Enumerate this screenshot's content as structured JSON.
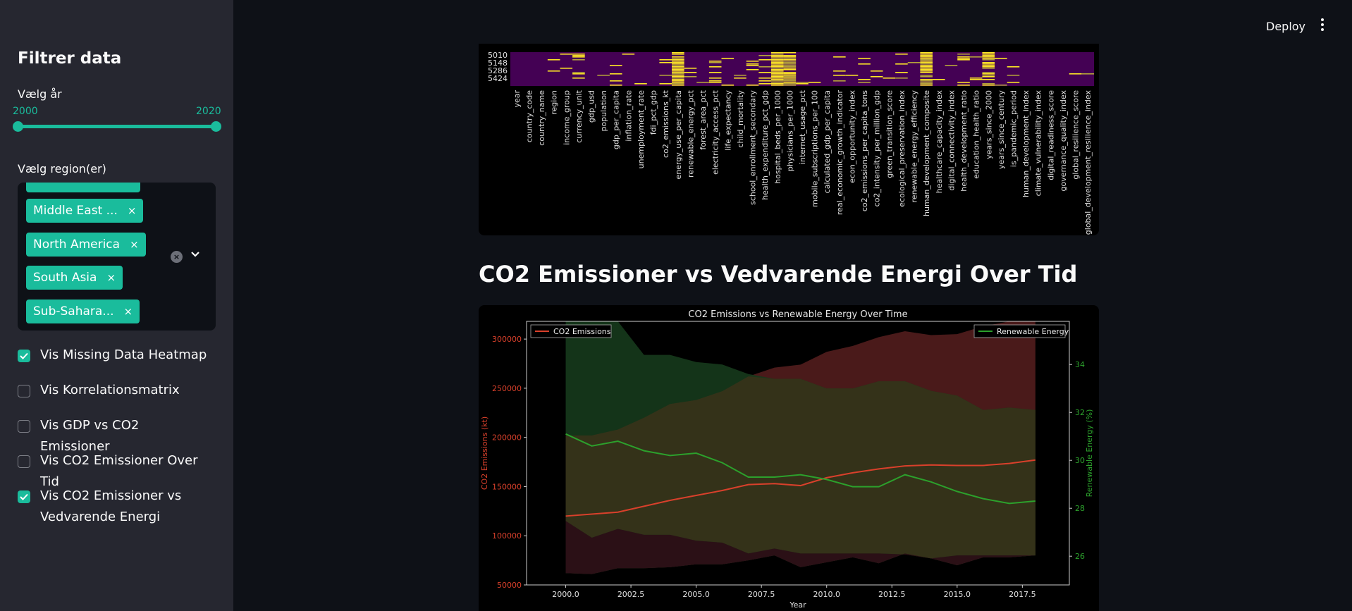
{
  "sidebar": {
    "title": "Filtrer data",
    "year_label": "Vælg år",
    "year_min": "2000",
    "year_max": "2020",
    "year_range": [
      2000,
      2020
    ],
    "region_label": "Vælg region(er)",
    "regions": [
      {
        "label": "Middle East ...",
        "remove": "×"
      },
      {
        "label": "North America",
        "remove": "×"
      },
      {
        "label": "South Asia",
        "remove": "×"
      },
      {
        "label": "Sub-Sahara...",
        "remove": "×"
      }
    ],
    "clear_glyph": "×",
    "checkboxes": [
      {
        "label": "Vis Missing Data Heatmap",
        "checked": true
      },
      {
        "label": "Vis Korrelationsmatrix",
        "checked": false
      },
      {
        "label": "Vis GDP vs CO2 Emissioner",
        "checked": false
      },
      {
        "label": "Vis CO2 Emissioner Over Tid",
        "checked": false
      },
      {
        "label": "Vis CO2 Emissioner vs Vedvarende Energi",
        "checked": true
      }
    ]
  },
  "header": {
    "deploy_label": "Deploy",
    "menu_icon": "vertical-dots-icon"
  },
  "heatmap": {
    "row_labels": [
      "5010",
      "5148",
      "5286",
      "5424"
    ],
    "columns": [
      "year",
      "country_code",
      "country_name",
      "region",
      "income_group",
      "currency_unit",
      "gdp_usd",
      "population",
      "gdp_per_capita",
      "inflation_rate",
      "unemployment_rate",
      "fdi_pct_gdp",
      "co2_emissions_kt",
      "energy_use_per_capita",
      "renewable_energy_pct",
      "forest_area_pct",
      "electricity_access_pct",
      "life_expectancy",
      "child_mortality",
      "school_enrollment_secondary",
      "health_expenditure_pct_gdp",
      "hospital_beds_per_1000",
      "physicians_per_1000",
      "internet_usage_pct",
      "mobile_subscriptions_per_100",
      "calculated_gdp_per_capita",
      "real_economic_growth_indicator",
      "econ_opportunity_index",
      "co2_emissions_per_capita_tons",
      "co2_intensity_per_million_gdp",
      "green_transition_score",
      "ecological_preservation_index",
      "renewable_energy_efficiency",
      "human_development_composite",
      "healthcare_capacity_index",
      "digital_connectivity_index",
      "health_development_ratio",
      "education_health_ratio",
      "years_since_2000",
      "years_since_century",
      "is_pandemic_period",
      "human_development_index",
      "climate_vulnerability_index",
      "digital_readiness_score",
      "governance_quality_index",
      "global_resilience_score",
      "global_development_resilience_index"
    ],
    "colors": {
      "background": "#440154",
      "missing": "#fde725",
      "mid": "#b5a33a"
    }
  },
  "section": {
    "title": "CO2 Emissioner vs Vedvarende Energi Over Tid"
  },
  "chart_data": {
    "type": "line",
    "title": "CO2 Emissions vs Renewable Energy Over Time",
    "xlabel": "Year",
    "ylabel": "CO2 Emissions (kt)",
    "ylabel_right": "Renewable Energy (%)",
    "x": [
      2000,
      2001,
      2002,
      2003,
      2004,
      2005,
      2006,
      2007,
      2008,
      2009,
      2010,
      2011,
      2012,
      2013,
      2014,
      2015,
      2016,
      2017,
      2018
    ],
    "xlim": [
      1998.5,
      2019.3
    ],
    "ylim": [
      50000,
      318000
    ],
    "ylim_right": [
      24.8,
      35.8
    ],
    "x_ticks": [
      "2000.0",
      "2002.5",
      "2005.0",
      "2007.5",
      "2010.0",
      "2012.5",
      "2015.0",
      "2017.5"
    ],
    "y_ticks": [
      "50000",
      "100000",
      "150000",
      "200000",
      "250000",
      "300000"
    ],
    "y_right_ticks": [
      "26",
      "28",
      "30",
      "32",
      "34"
    ],
    "series": [
      {
        "name": "CO2 Emissions",
        "axis": "left",
        "color": "#d9402b",
        "values": [
          120000,
          122000,
          124000,
          130000,
          136000,
          141000,
          146000,
          152000,
          153000,
          151000,
          159000,
          164000,
          168000,
          171000,
          172000,
          171500,
          171500,
          173500,
          177000
        ],
        "band_low": [
          62000,
          61000,
          67000,
          67000,
          68000,
          71000,
          71000,
          75000,
          80000,
          68000,
          73000,
          78000,
          72000,
          82000,
          77000,
          70000,
          78000,
          78000,
          80000
        ],
        "band_high": [
          115000,
          98000,
          107000,
          101000,
          101000,
          95000,
          93000,
          82000,
          87000,
          82000,
          82000,
          82000,
          82000,
          81000,
          77000,
          80000,
          80000,
          80000,
          80000
        ],
        "band_top": [
          202000,
          202000,
          208000,
          220000,
          234000,
          238000,
          247000,
          262000,
          271000,
          274000,
          287000,
          293000,
          302000,
          308000,
          304000,
          305000,
          313000,
          318000,
          318000
        ]
      },
      {
        "name": "Renewable Energy",
        "axis": "right",
        "color": "#2ca02c",
        "values": [
          31.1,
          30.6,
          30.8,
          30.4,
          30.2,
          30.3,
          29.9,
          29.3,
          29.3,
          29.4,
          29.2,
          28.9,
          28.9,
          29.4,
          29.1,
          28.7,
          28.4,
          28.2,
          28.3
        ],
        "band_top": [
          35.8,
          35.8,
          35.8,
          34.4,
          34.4,
          34.1,
          34.0,
          33.6,
          33.4,
          33.4,
          33.0,
          33.0,
          33.3,
          33.3,
          32.9,
          32.7,
          32.1,
          32.2,
          32.1
        ]
      }
    ],
    "band_colors": {
      "co2": "#4a1a1a",
      "renewable": "#163a1c",
      "overlap": "#343219",
      "low_co2": "#2b1016",
      "low_green": "#18331d"
    },
    "legend_left": "CO2 Emissions",
    "legend_right": "Renewable Energy",
    "grid": false
  }
}
